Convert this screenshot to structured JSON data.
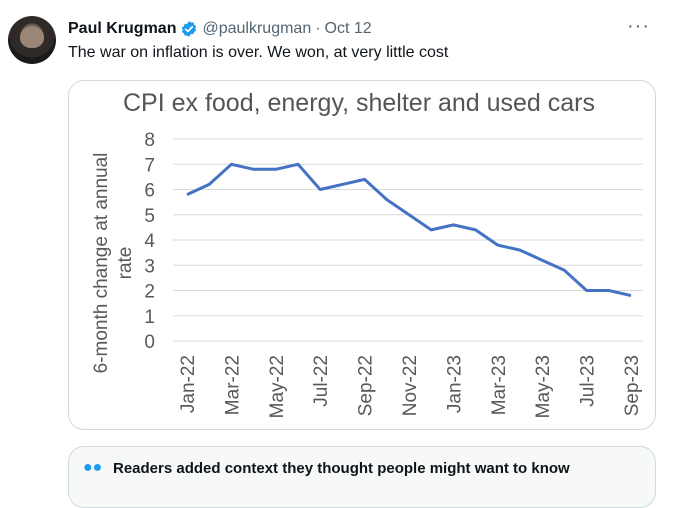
{
  "tweet": {
    "author_name": "Paul Krugman",
    "handle": "@paulkrugman",
    "separator": "·",
    "date": "Oct 12",
    "text": "The war on inflation is over. We won, at very little cost",
    "more_glyph": "···"
  },
  "icons": {
    "avatar": "author-avatar",
    "verified": "verified-badge-icon",
    "more": "more-options-icon",
    "community_note": "people-icon"
  },
  "colors": {
    "verified": "#1d9bf0",
    "line": "#4472c4",
    "grid": "#d9d9d9"
  },
  "chart_data": {
    "type": "line",
    "title": "CPI ex food, energy, shelter and used cars",
    "ylabel": "6-month change at annual rate",
    "ylabel_lines": [
      "6-month change at annual",
      "rate"
    ],
    "xlabel": "",
    "ylim": [
      0,
      8
    ],
    "yticks": [
      0,
      1,
      2,
      3,
      4,
      5,
      6,
      7,
      8
    ],
    "grid": true,
    "x_tick_labels": [
      "Jan-22",
      "Mar-22",
      "May-22",
      "Jul-22",
      "Sep-22",
      "Nov-22",
      "Jan-23",
      "Mar-23",
      "May-23",
      "Jul-23",
      "Sep-23"
    ],
    "x": [
      "Jan-22",
      "Feb-22",
      "Mar-22",
      "Apr-22",
      "May-22",
      "Jun-22",
      "Jul-22",
      "Aug-22",
      "Sep-22",
      "Oct-22",
      "Nov-22",
      "Dec-22",
      "Jan-23",
      "Feb-23",
      "Mar-23",
      "Apr-23",
      "May-23",
      "Jun-23",
      "Jul-23",
      "Aug-23",
      "Sep-23"
    ],
    "series": [
      {
        "values": [
          5.8,
          6.2,
          7.0,
          6.8,
          6.8,
          7.0,
          6.0,
          6.2,
          6.4,
          5.6,
          5.0,
          4.4,
          4.6,
          4.4,
          3.8,
          3.6,
          3.2,
          2.8,
          2.0,
          2.0,
          1.8
        ]
      }
    ]
  },
  "community_note": {
    "text": "Readers added context they thought people might want to know"
  }
}
